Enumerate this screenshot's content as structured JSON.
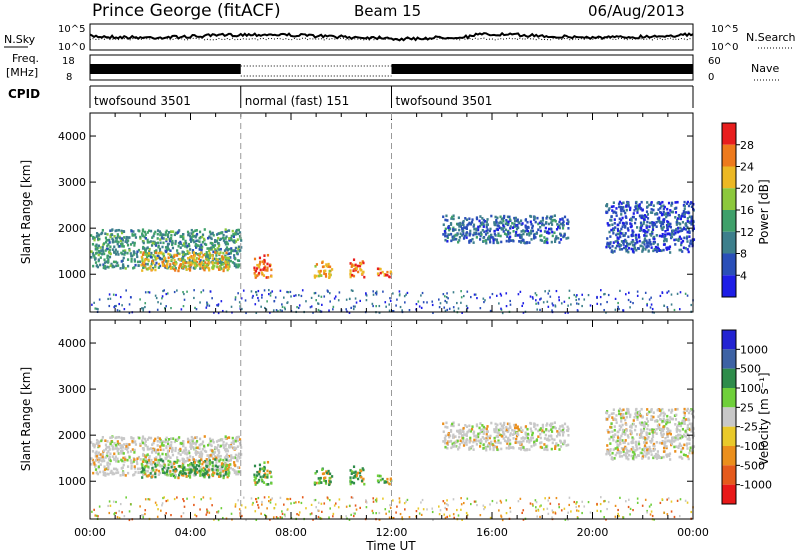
{
  "header": {
    "station": "Prince George (fitACF)",
    "beam": "Beam 15",
    "date": "06/Aug/2013"
  },
  "noise_panel": {
    "left_label": "N.Sky",
    "right_label": "N.Search",
    "left_ticks": [
      "10^5",
      "10^0"
    ],
    "right_ticks": [
      "10^5",
      "10^0"
    ]
  },
  "freq_panel": {
    "left_label_1": "Freq.",
    "left_label_2": "[MHz]",
    "right_label": "Nave",
    "left_ticks": [
      "18",
      "8"
    ],
    "right_ticks": [
      "60",
      "0"
    ]
  },
  "cpid": {
    "label": "CPID",
    "segments": [
      {
        "name": "twofsound 3501",
        "start": 0,
        "end": 6
      },
      {
        "name": "normal (fast) 151",
        "start": 6,
        "end": 12
      },
      {
        "name": "twofsound 3501",
        "start": 12,
        "end": 24
      }
    ]
  },
  "colors": {
    "power_scale": [
      "#1e1ee6",
      "#2a4fb8",
      "#3d7f8c",
      "#3fa06a",
      "#8cc83c",
      "#ecb824",
      "#ee7a1c",
      "#e81e1e"
    ],
    "velocity_scale": [
      "#2323d2",
      "#3d62a4",
      "#2e8c4a",
      "#6fcf3a",
      "#c8c8c8",
      "#e9c92a",
      "#eb8f1c",
      "#e55a1c",
      "#e81919"
    ]
  },
  "chart_data": [
    {
      "type": "heatmap",
      "name": "power",
      "ylabel": "Slant Range [km]",
      "ylim": [
        180,
        4500
      ],
      "yticks": [
        "1000",
        "2000",
        "3000",
        "4000"
      ],
      "xlim": [
        0,
        24
      ],
      "colorbar_label": "Power [dB]",
      "colorbar_ticks": [
        "4",
        "8",
        "12",
        "16",
        "20",
        "24",
        "28"
      ],
      "echo_patches": [
        {
          "t_start": 0.0,
          "t_end": 6.0,
          "r_start": 1150,
          "r_end": 2000,
          "level": 12
        },
        {
          "t_start": 2.0,
          "t_end": 5.5,
          "r_start": 1100,
          "r_end": 1500,
          "level": 22
        },
        {
          "t_start": 6.5,
          "t_end": 7.2,
          "r_start": 950,
          "r_end": 1450,
          "level": 27
        },
        {
          "t_start": 8.9,
          "t_end": 9.6,
          "r_start": 950,
          "r_end": 1300,
          "level": 22
        },
        {
          "t_start": 10.3,
          "t_end": 10.9,
          "r_start": 950,
          "r_end": 1350,
          "level": 26
        },
        {
          "t_start": 11.4,
          "t_end": 12.0,
          "r_start": 950,
          "r_end": 1150,
          "level": 26
        },
        {
          "t_start": 14.0,
          "t_end": 19.0,
          "r_start": 1700,
          "r_end": 2300,
          "level": 8
        },
        {
          "t_start": 20.5,
          "t_end": 24.0,
          "r_start": 1500,
          "r_end": 2600,
          "level": 6
        }
      ]
    },
    {
      "type": "heatmap",
      "name": "velocity",
      "xlabel": "Time UT",
      "ylabel": "Slant Range [km]",
      "ylim": [
        180,
        4500
      ],
      "yticks": [
        "1000",
        "2000",
        "3000",
        "4000"
      ],
      "xlim": [
        0,
        24
      ],
      "xticks": [
        "00:00",
        "04:00",
        "08:00",
        "12:00",
        "16:00",
        "20:00",
        "00:00"
      ],
      "colorbar_label": "Velocity [m s⁻¹]",
      "colorbar_ticks": [
        "1000",
        "500",
        "100",
        "25",
        "-25",
        "-100",
        "-500",
        "-1000"
      ]
    }
  ]
}
